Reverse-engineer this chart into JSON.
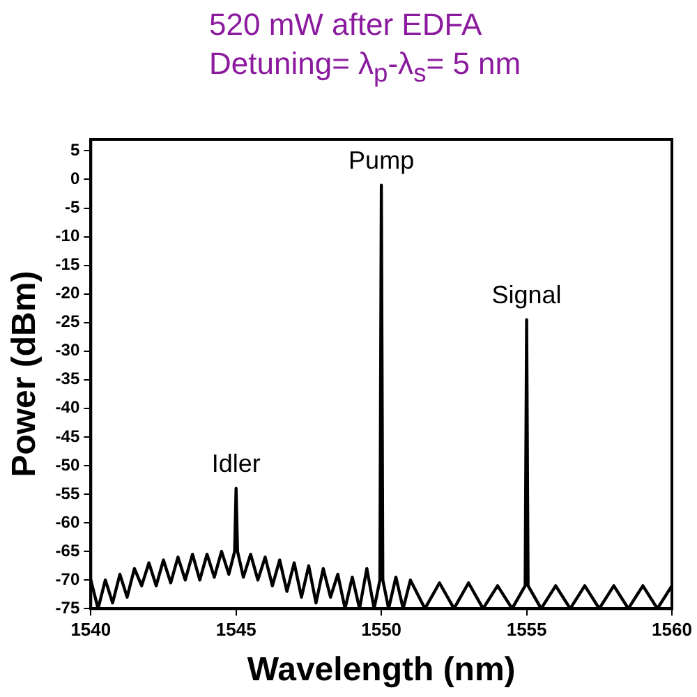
{
  "chart_data": {
    "type": "line",
    "title": "520 mW after EDFA",
    "subtitle": "Detuning= λ$_{p}$-λ$_{s}$= 5 nm",
    "xlabel": "Wavelength (nm)",
    "ylabel": "Power (dBm)",
    "xlim": [
      1540,
      1560
    ],
    "xticks": [
      1540,
      1545,
      1550,
      1555,
      1560
    ],
    "ylim": [
      -75,
      7
    ],
    "yticks": [
      -75,
      -70,
      -65,
      -60,
      -55,
      -50,
      -45,
      -40,
      -35,
      -30,
      -25,
      -20,
      -15,
      -10,
      -5,
      0,
      5
    ],
    "marker": "none",
    "legend": false,
    "series": [
      {
        "color": "#000000",
        "x": [
          1540,
          1540.25,
          1540.5,
          1540.75,
          1541,
          1541.25,
          1541.5,
          1541.75,
          1542,
          1542.25,
          1542.5,
          1542.75,
          1543,
          1543.25,
          1543.5,
          1543.75,
          1544,
          1544.25,
          1544.5,
          1544.75,
          1544.95,
          1545,
          1545.05,
          1545.25,
          1545.5,
          1545.75,
          1546,
          1546.25,
          1546.5,
          1546.75,
          1547,
          1547.25,
          1547.5,
          1547.75,
          1548,
          1548.25,
          1548.5,
          1548.75,
          1549,
          1549.25,
          1549.5,
          1549.75,
          1549.95,
          1550,
          1550.05,
          1550.25,
          1550.5,
          1550.75,
          1551,
          1551.5,
          1552,
          1552.5,
          1553,
          1553.5,
          1554,
          1554.5,
          1554.95,
          1555,
          1555.05,
          1555.5,
          1556,
          1556.5,
          1557,
          1557.5,
          1558,
          1558.5,
          1559,
          1559.5,
          1560
        ],
        "values": [
          -70,
          -75,
          -70,
          -74,
          -69,
          -73,
          -68,
          -71,
          -67,
          -71,
          -66.5,
          -70.5,
          -66,
          -70,
          -65.5,
          -70,
          -65.5,
          -69.5,
          -65,
          -69,
          -65,
          -54,
          -65,
          -69.5,
          -65.5,
          -70,
          -66,
          -71,
          -66.5,
          -72,
          -67,
          -73,
          -67.5,
          -74,
          -68,
          -73,
          -69,
          -75,
          -69.5,
          -75,
          -68,
          -75,
          -70,
          -1,
          -70,
          -75,
          -69.5,
          -75,
          -70,
          -75,
          -70.5,
          -75,
          -70.5,
          -75,
          -71,
          -75,
          -71,
          -24.5,
          -71,
          -75,
          -71,
          -75,
          -71,
          -75,
          -71,
          -75,
          -71,
          -75,
          -71
        ]
      }
    ],
    "annotations": [
      {
        "text": "Idler",
        "x": 1545,
        "y": -54
      },
      {
        "text": "Pump",
        "x": 1550,
        "y": -1
      },
      {
        "text": "Signal",
        "x": 1555,
        "y": -24.5
      }
    ]
  }
}
